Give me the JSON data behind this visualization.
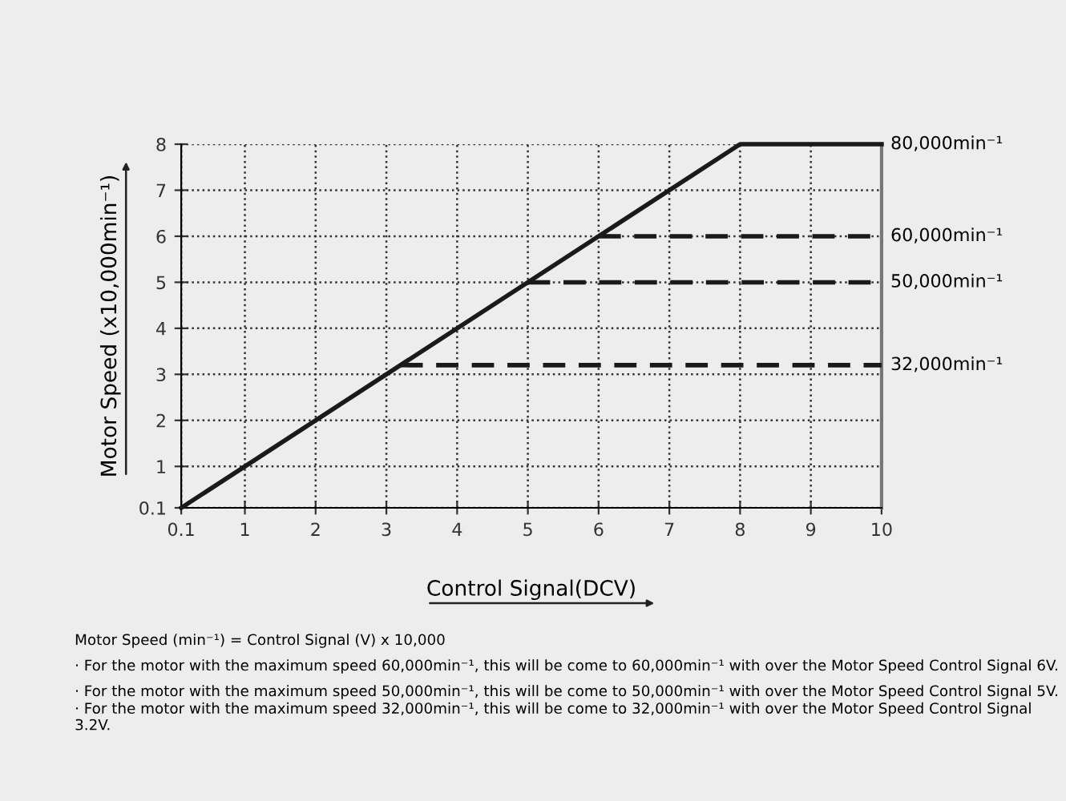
{
  "chart_data": {
    "type": "line",
    "xlabel": "Control Signal(DCV)",
    "ylabel": "Motor Speed (x10,000min⁻¹)",
    "x": [
      0.1,
      8,
      10
    ],
    "series": [
      {
        "name": "80,000min⁻¹",
        "color": "#1a1a1a",
        "values": [
          0.1,
          8,
          8
        ],
        "line_style": "solid"
      },
      {
        "name": "60,000min⁻¹",
        "color": "#1a1a1a",
        "x": [
          6,
          10
        ],
        "values": [
          6,
          6
        ],
        "line_style": "dashed"
      },
      {
        "name": "50,000min⁻¹",
        "color": "#1a1a1a",
        "x": [
          5,
          10
        ],
        "values": [
          5,
          5
        ],
        "line_style": "dashed"
      },
      {
        "name": "32,000min⁻¹",
        "color": "#1a1a1a",
        "x": [
          3.2,
          10
        ],
        "values": [
          3.2,
          3.2
        ],
        "line_style": "dashed"
      }
    ],
    "xlim": [
      0.1,
      10
    ],
    "ylim": [
      0.1,
      8
    ],
    "xticks": [
      0.1,
      1,
      2,
      3,
      4,
      5,
      6,
      7,
      8,
      9,
      10
    ],
    "yticks": [
      0.1,
      1,
      2,
      3,
      4,
      5,
      6,
      7,
      8
    ],
    "grid": true,
    "marker": "none",
    "annotations": [
      "Motor Speed (min⁻¹) = Control Signal (V) x 10,000",
      "· For the motor with the maximum speed 60,000min⁻¹, this will be come to 60,000min⁻¹ with over the Motor Speed Control Signal 6V.",
      "· For the motor with the maximum speed 50,000min⁻¹, this will be come to 50,000min⁻¹ with over the Motor Speed Control Signal 5V.",
      "· For the motor with the maximum speed 32,000min⁻¹, this will be come to 32,000min⁻¹ with over the Motor Speed Control Signal 3.2V."
    ]
  }
}
